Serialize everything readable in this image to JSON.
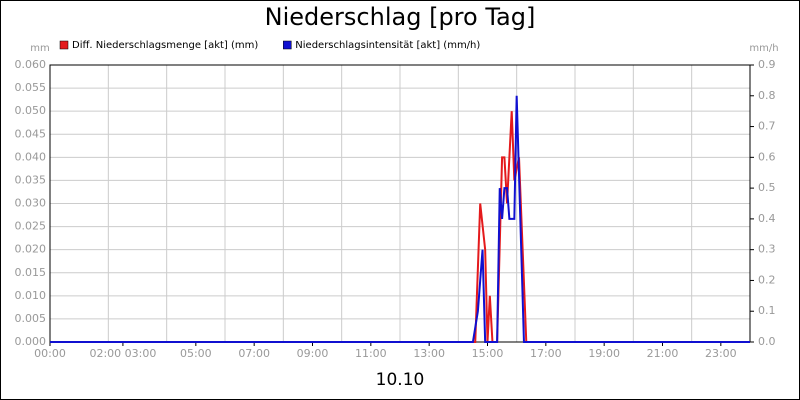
{
  "chart_data": {
    "type": "line",
    "title": "Niederschlag [pro Tag]",
    "xlabel": "10.10",
    "ylabel": "mm",
    "y2label": "mm/h",
    "xlim": [
      0,
      24
    ],
    "xticks": [
      {
        "value": 0,
        "label": "00:00"
      },
      {
        "value": 2.5,
        "label": "02:00 03:00"
      },
      {
        "value": 5,
        "label": "05:00"
      },
      {
        "value": 7,
        "label": "07:00"
      },
      {
        "value": 9,
        "label": "09:00"
      },
      {
        "value": 11,
        "label": "11:00"
      },
      {
        "value": 13,
        "label": "13:00"
      },
      {
        "value": 15,
        "label": "15:00"
      },
      {
        "value": 17,
        "label": "17:00"
      },
      {
        "value": 19,
        "label": "19:00"
      },
      {
        "value": 21,
        "label": "21:00"
      },
      {
        "value": 23,
        "label": "23:00"
      }
    ],
    "xgrid": [
      2,
      4,
      6,
      8,
      10,
      12,
      14,
      16,
      18,
      20,
      22
    ],
    "ylim": [
      0,
      0.06
    ],
    "yticks": [
      {
        "value": 0,
        "label": "0.000"
      },
      {
        "value": 0.005,
        "label": "0.005"
      },
      {
        "value": 0.01,
        "label": "0.010"
      },
      {
        "value": 0.015,
        "label": "0.015"
      },
      {
        "value": 0.02,
        "label": "0.020"
      },
      {
        "value": 0.025,
        "label": "0.025"
      },
      {
        "value": 0.03,
        "label": "0.030"
      },
      {
        "value": 0.035,
        "label": "0.035"
      },
      {
        "value": 0.04,
        "label": "0.040"
      },
      {
        "value": 0.045,
        "label": "0.045"
      },
      {
        "value": 0.05,
        "label": "0.050"
      },
      {
        "value": 0.055,
        "label": "0.055"
      },
      {
        "value": 0.06,
        "label": "0.060"
      }
    ],
    "y2lim": [
      0,
      0.9
    ],
    "y2ticks": [
      {
        "value": 0,
        "label": "0.0"
      },
      0.1,
      0.2,
      0.3,
      0.4,
      0.5,
      0.6,
      0.7,
      0.8,
      0.9
    ],
    "grid": true,
    "series": [
      {
        "name": "Diff. Niederschlagsmenge [akt] (mm)",
        "color": "#e41a1c",
        "axis": "y",
        "x": [
          0,
          14.58,
          14.75,
          14.92,
          15.0,
          15.08,
          15.17,
          15.33,
          15.5,
          15.58,
          15.67,
          15.83,
          15.92,
          16.08,
          16.33,
          24
        ],
        "values": [
          0,
          0,
          0.03,
          0.02,
          0,
          0.01,
          0,
          0,
          0.04,
          0.04,
          0.03,
          0.05,
          0.035,
          0.04,
          0,
          0
        ]
      },
      {
        "name": "Niederschlagsintensität [akt] (mm/h)",
        "color": "#1010d0",
        "axis": "y2",
        "x": [
          0,
          14.5,
          14.67,
          14.83,
          14.92,
          15.33,
          15.42,
          15.5,
          15.58,
          15.67,
          15.75,
          15.92,
          16.0,
          16.25,
          24
        ],
        "values": [
          0,
          0,
          0.1,
          0.3,
          0,
          0,
          0.5,
          0.4,
          0.5,
          0.5,
          0.4,
          0.4,
          0.8,
          0,
          0
        ]
      }
    ]
  }
}
